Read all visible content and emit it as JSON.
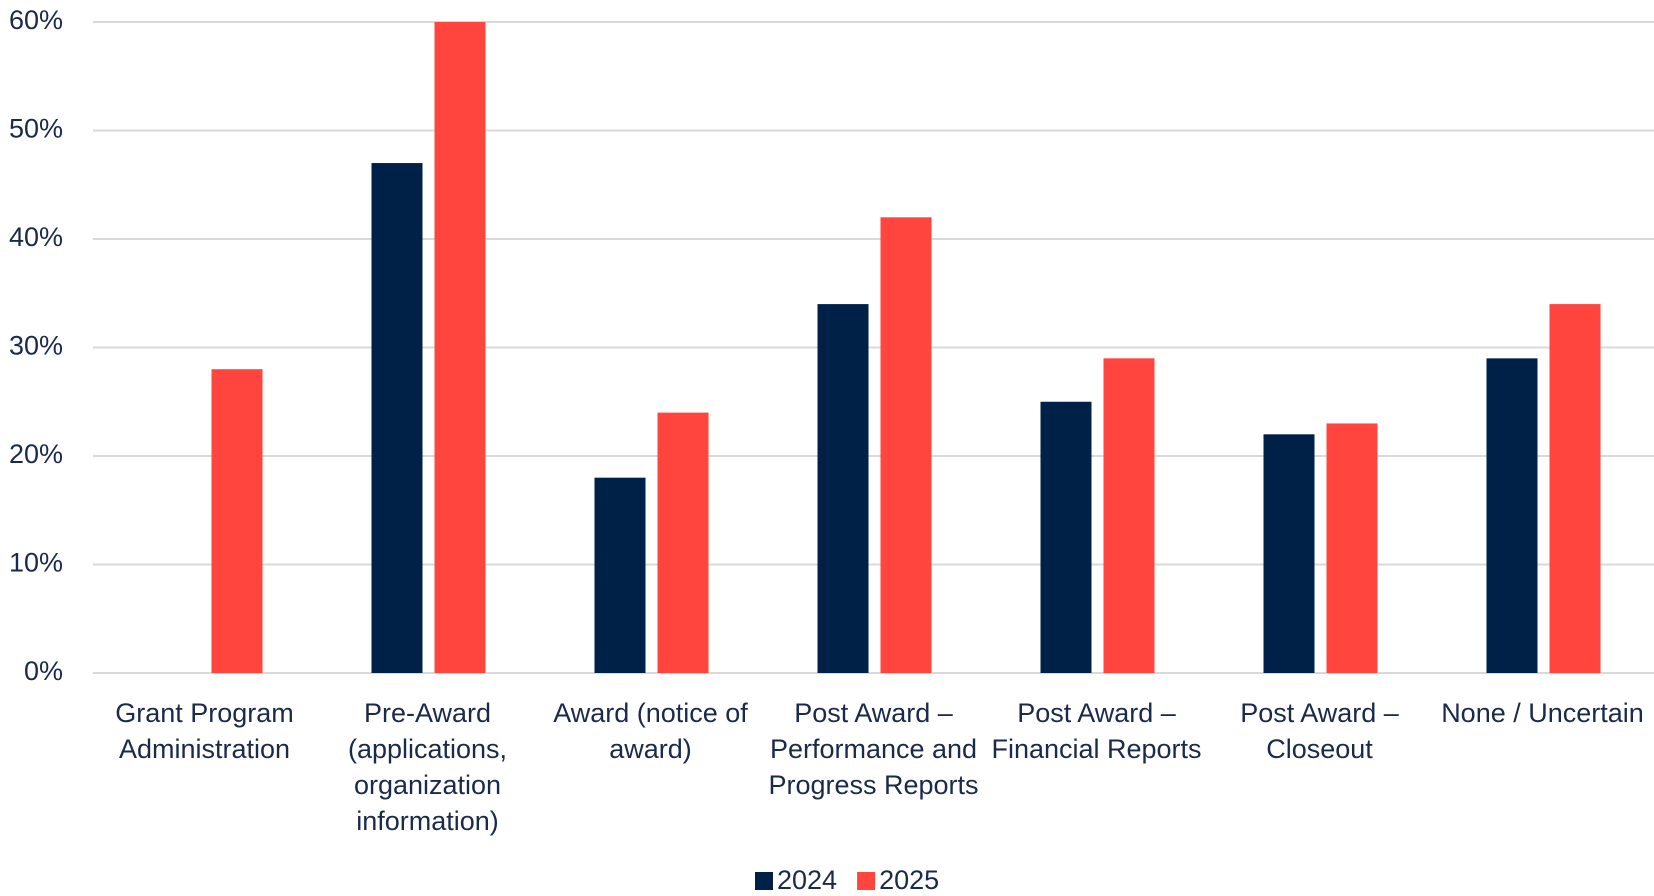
{
  "chart_data": {
    "type": "bar",
    "categories": [
      "Grant Program Administration",
      "Pre-Award (applications, organization information)",
      "Award (notice of award)",
      "Post Award – Performance and Progress Reports",
      "Post Award – Financial Reports",
      "Post Award – Closeout",
      "None / Uncertain"
    ],
    "series": [
      {
        "name": "2024",
        "color": "#002147",
        "values": [
          null,
          47,
          18,
          34,
          25,
          22,
          29
        ]
      },
      {
        "name": "2025",
        "color": "#ff453d",
        "values": [
          28,
          60,
          24,
          42,
          29,
          23,
          34
        ]
      }
    ],
    "ylim": [
      0,
      60
    ],
    "yticks": [
      {
        "value": 0,
        "label": "0%"
      },
      {
        "value": 10,
        "label": "10%"
      },
      {
        "value": 20,
        "label": "20%"
      },
      {
        "value": 30,
        "label": "30%"
      },
      {
        "value": 40,
        "label": "40%"
      },
      {
        "value": 50,
        "label": "50%"
      },
      {
        "value": 60,
        "label": "60%"
      }
    ],
    "grid": true,
    "legend": "bottom"
  }
}
